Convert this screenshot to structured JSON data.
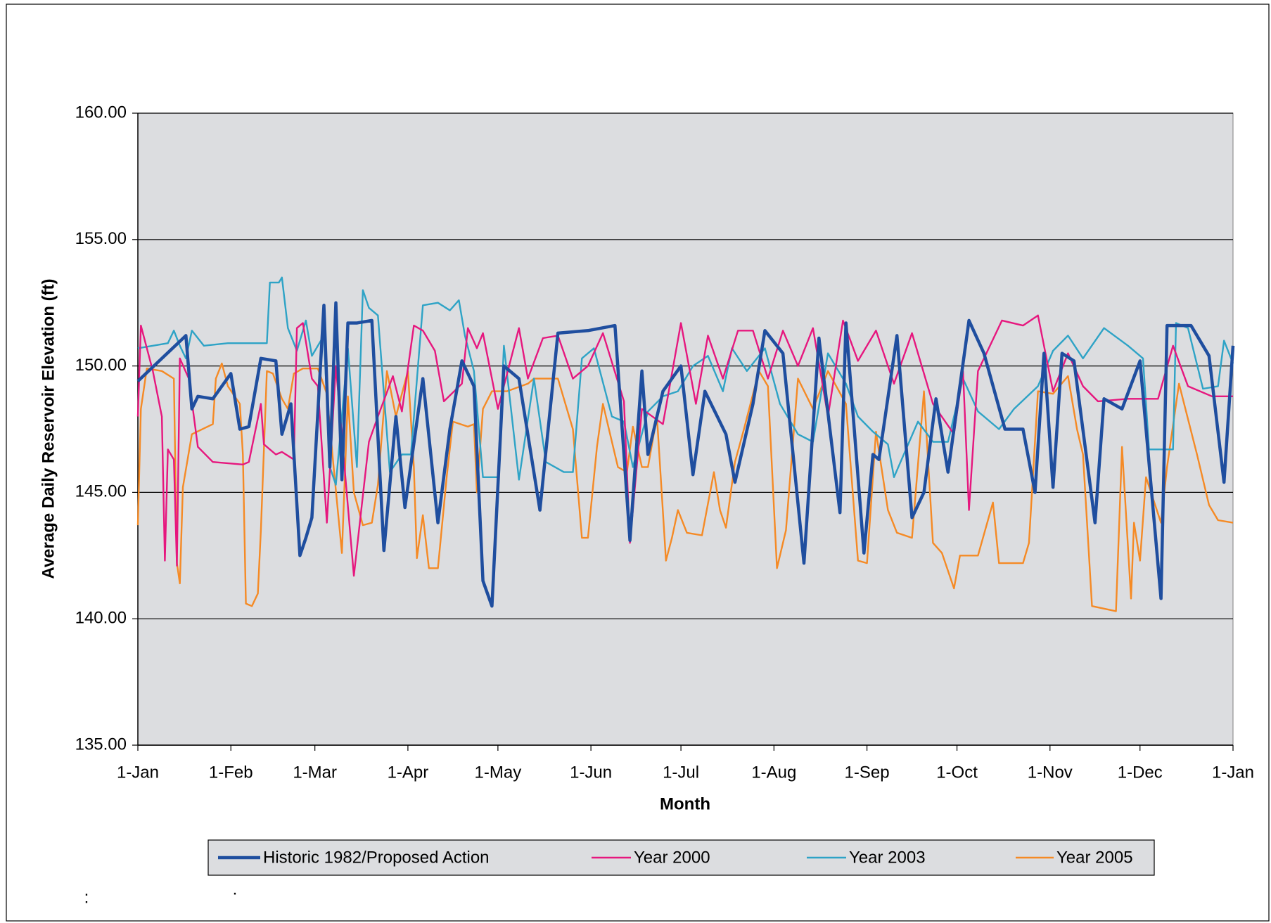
{
  "chart_data": {
    "type": "line",
    "y_label": "Average Daily Reservoir Elevation (ft)",
    "x_label": "Month",
    "annotations": [
      ":",
      "."
    ],
    "xlim": [
      0,
      365
    ],
    "xticks": [
      {
        "value": 0,
        "label": "1-Jan"
      },
      {
        "value": 31,
        "label": "1-Feb"
      },
      {
        "value": 59,
        "label": "1-Mar"
      },
      {
        "value": 90,
        "label": "1-Apr"
      },
      {
        "value": 120,
        "label": "1-May"
      },
      {
        "value": 151,
        "label": "1-Jun"
      },
      {
        "value": 181,
        "label": "1-Jul"
      },
      {
        "value": 212,
        "label": "1-Aug"
      },
      {
        "value": 243,
        "label": "1-Sep"
      },
      {
        "value": 273,
        "label": "1-Oct"
      },
      {
        "value": 304,
        "label": "1-Nov"
      },
      {
        "value": 334,
        "label": "1-Dec"
      },
      {
        "value": 365,
        "label": "1-Jan"
      }
    ],
    "ylim": [
      135,
      160
    ],
    "yticks": [
      {
        "value": 135,
        "label": "135.00"
      },
      {
        "value": 140,
        "label": "140.00"
      },
      {
        "value": 145,
        "label": "145.00"
      },
      {
        "value": 150,
        "label": "150.00"
      },
      {
        "value": 155,
        "label": "155.00"
      },
      {
        "value": 160,
        "label": "160.00"
      }
    ],
    "grid": true,
    "background": "#dcdde0",
    "legend": "bottom",
    "series": [
      {
        "name": "Historic 1982/Proposed Action",
        "color": "#1f4e9f",
        "width": 4.5,
        "x": [
          0,
          16,
          18,
          20,
          25,
          31,
          34,
          37,
          41,
          46,
          48,
          51,
          54,
          56,
          58,
          62,
          64,
          66,
          68,
          70,
          73,
          78,
          82,
          86,
          89,
          95,
          100,
          104,
          108,
          112,
          115,
          118,
          122,
          127,
          134,
          140,
          150,
          159,
          164,
          168,
          170,
          175,
          181,
          185,
          189,
          196,
          199,
          205,
          209,
          215,
          222,
          227,
          234,
          236,
          242,
          245,
          247,
          253,
          258,
          262,
          266,
          270,
          277,
          282,
          289,
          295,
          299,
          302,
          305,
          308,
          312,
          319,
          322,
          328,
          334,
          341,
          343,
          351,
          357,
          362,
          365
        ],
        "values": [
          149.4,
          151.2,
          148.3,
          148.8,
          148.7,
          149.7,
          147.5,
          147.6,
          150.3,
          150.2,
          147.3,
          148.5,
          142.5,
          143.2,
          144.0,
          152.4,
          146.0,
          152.5,
          145.5,
          151.7,
          151.7,
          151.8,
          142.7,
          148.0,
          144.4,
          149.5,
          143.8,
          147.5,
          150.2,
          149.2,
          141.5,
          140.5,
          150.0,
          149.5,
          144.3,
          151.3,
          151.4,
          151.6,
          143.1,
          149.8,
          146.5,
          149.0,
          150.0,
          145.7,
          149.0,
          147.3,
          145.4,
          148.5,
          151.4,
          150.5,
          142.2,
          151.1,
          144.2,
          151.7,
          142.6,
          146.5,
          146.3,
          151.2,
          144.0,
          145.0,
          148.7,
          145.8,
          151.8,
          150.5,
          147.5,
          147.5,
          145.0,
          150.5,
          145.2,
          150.5,
          150.2,
          143.8,
          148.7,
          148.3,
          150.2,
          140.8,
          151.6,
          151.6,
          150.4,
          145.4,
          150.8
        ]
      },
      {
        "name": "Year 2000",
        "color": "#e6177e",
        "width": 2.4,
        "x": [
          0,
          1,
          5,
          8,
          9,
          10,
          12,
          13,
          14,
          17,
          20,
          25,
          35,
          37,
          41,
          42,
          46,
          48,
          52,
          53,
          55,
          58,
          60,
          63,
          66,
          72,
          77,
          80,
          85,
          88,
          92,
          95,
          99,
          102,
          108,
          110,
          113,
          115,
          120,
          127,
          130,
          135,
          140,
          145,
          150,
          155,
          162,
          164,
          168,
          175,
          181,
          186,
          190,
          195,
          200,
          205,
          210,
          215,
          220,
          225,
          230,
          235,
          240,
          246,
          252,
          258,
          265,
          272,
          275,
          277,
          280,
          288,
          295,
          300,
          305,
          310,
          315,
          320,
          330,
          340,
          345,
          350,
          358,
          365
        ],
        "values": [
          148.0,
          151.6,
          149.8,
          148.0,
          142.3,
          146.7,
          146.3,
          142.1,
          150.3,
          149.5,
          146.8,
          146.2,
          146.1,
          146.2,
          148.5,
          146.9,
          146.5,
          146.6,
          146.3,
          151.5,
          151.7,
          149.5,
          149.2,
          143.8,
          150.0,
          141.7,
          147.0,
          148.0,
          149.6,
          148.2,
          151.6,
          151.4,
          150.6,
          148.6,
          149.3,
          151.5,
          150.7,
          151.3,
          148.3,
          151.5,
          149.5,
          151.1,
          151.2,
          149.5,
          150.0,
          151.3,
          148.6,
          143.0,
          148.3,
          147.7,
          151.7,
          148.5,
          151.2,
          149.5,
          151.4,
          151.4,
          149.5,
          151.4,
          150.0,
          151.5,
          148.0,
          151.8,
          150.2,
          151.4,
          149.3,
          151.3,
          148.5,
          147.3,
          149.8,
          144.3,
          149.8,
          151.8,
          151.6,
          152.0,
          149.0,
          150.5,
          149.2,
          148.6,
          148.7,
          148.7,
          150.8,
          149.2,
          148.8,
          148.8
        ]
      },
      {
        "name": "Year 2003",
        "color": "#2ea3c6",
        "width": 2.4,
        "x": [
          0,
          10,
          12,
          14,
          16,
          18,
          22,
          30,
          40,
          43,
          44,
          47,
          48,
          50,
          53,
          56,
          58,
          62,
          64,
          66,
          70,
          73,
          75,
          77,
          80,
          84,
          88,
          91,
          95,
          100,
          104,
          107,
          109,
          112,
          115,
          120,
          122,
          127,
          132,
          136,
          142,
          145,
          148,
          152,
          158,
          162,
          165,
          170,
          175,
          180,
          185,
          190,
          195,
          198,
          203,
          209,
          214,
          220,
          225,
          230,
          236,
          240,
          245,
          250,
          252,
          256,
          260,
          265,
          270,
          275,
          280,
          287,
          292,
          300,
          305,
          310,
          315,
          322,
          330,
          335,
          337,
          345,
          346,
          350,
          355,
          360,
          362,
          365
        ],
        "values": [
          150.7,
          150.9,
          151.4,
          150.8,
          150.3,
          151.4,
          150.8,
          150.9,
          150.9,
          150.9,
          153.3,
          153.3,
          153.5,
          151.5,
          150.6,
          151.8,
          150.4,
          151.2,
          146.0,
          145.3,
          150.7,
          146.0,
          153.0,
          152.3,
          152.0,
          145.8,
          146.5,
          146.5,
          152.4,
          152.5,
          152.2,
          152.6,
          151.2,
          149.8,
          145.6,
          145.6,
          150.8,
          145.5,
          149.5,
          146.2,
          145.8,
          145.8,
          150.3,
          150.7,
          148.0,
          147.8,
          146.0,
          148.2,
          148.8,
          149.0,
          150.0,
          150.4,
          149.0,
          150.7,
          149.8,
          150.7,
          148.5,
          147.3,
          147.0,
          150.5,
          149.3,
          148.0,
          147.4,
          146.9,
          145.6,
          146.7,
          147.8,
          147.0,
          147.0,
          149.5,
          148.2,
          147.5,
          148.3,
          149.2,
          150.6,
          151.2,
          150.3,
          151.5,
          150.8,
          150.3,
          146.7,
          146.7,
          151.7,
          151.5,
          149.1,
          149.2,
          151.0,
          150.1
        ]
      },
      {
        "name": "Year 2005",
        "color": "#f58a25",
        "width": 2.4,
        "x": [
          0,
          1,
          3,
          8,
          12,
          13,
          14,
          15,
          18,
          25,
          26,
          28,
          30,
          34,
          35,
          36,
          38,
          40,
          41,
          43,
          45,
          48,
          50,
          52,
          55,
          60,
          63,
          65,
          68,
          70,
          72,
          75,
          78,
          80,
          83,
          86,
          90,
          92,
          93,
          95,
          97,
          100,
          103,
          105,
          110,
          112,
          113,
          115,
          118,
          123,
          130,
          132,
          140,
          145,
          148,
          150,
          153,
          155,
          160,
          163,
          165,
          168,
          170,
          173,
          176,
          178,
          180,
          183,
          188,
          192,
          194,
          196,
          199,
          202,
          207,
          210,
          213,
          216,
          220,
          225,
          230,
          236,
          240,
          243,
          246,
          250,
          253,
          258,
          262,
          265,
          268,
          272,
          274,
          280,
          285,
          287,
          295,
          297,
          300,
          305,
          310,
          313,
          315,
          318,
          326,
          328,
          331,
          332,
          334,
          336,
          341,
          343,
          347,
          353,
          357,
          360,
          365
        ],
        "values": [
          143.7,
          148.3,
          149.9,
          149.8,
          149.5,
          142.2,
          141.4,
          145.2,
          147.3,
          147.7,
          149.5,
          150.1,
          149.2,
          148.5,
          146.5,
          140.6,
          140.5,
          141.0,
          143.5,
          149.8,
          149.7,
          148.7,
          148.3,
          149.7,
          149.9,
          149.9,
          148.9,
          146.3,
          142.6,
          148.8,
          145.0,
          143.7,
          143.8,
          145.3,
          149.8,
          148.0,
          149.8,
          146.0,
          142.4,
          144.1,
          142.0,
          142.0,
          145.7,
          147.8,
          147.6,
          147.7,
          145.0,
          148.3,
          149.0,
          149.0,
          149.3,
          149.5,
          149.5,
          147.5,
          143.2,
          143.2,
          146.8,
          148.5,
          146.0,
          145.8,
          147.6,
          146.0,
          146.0,
          148.0,
          142.3,
          143.2,
          144.3,
          143.4,
          143.3,
          145.8,
          144.3,
          143.6,
          146.2,
          147.5,
          149.8,
          149.2,
          142.0,
          143.5,
          149.5,
          148.3,
          149.8,
          148.5,
          142.3,
          142.2,
          147.4,
          144.3,
          143.4,
          143.2,
          149.0,
          143.0,
          142.6,
          141.2,
          142.5,
          142.5,
          144.6,
          142.2,
          142.2,
          143.0,
          149.0,
          148.9,
          149.6,
          147.5,
          146.5,
          140.5,
          140.3,
          146.8,
          140.8,
          143.8,
          142.3,
          145.6,
          143.8,
          146.0,
          149.3,
          146.5,
          144.5,
          143.9,
          143.8
        ]
      }
    ]
  }
}
